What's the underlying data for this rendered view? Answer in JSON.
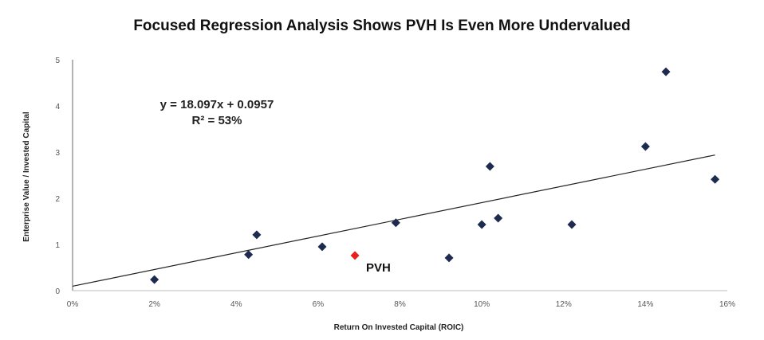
{
  "chart_data": {
    "type": "scatter",
    "title": "Focused Regression Analysis Shows PVH Is Even More Undervalued",
    "xlabel": "Return On Invested Capital (ROIC)",
    "ylabel": "Enterprise Value / Invested Capital",
    "xlim": [
      0,
      0.16
    ],
    "ylim": [
      0,
      5
    ],
    "x_ticks": [
      "0%",
      "2%",
      "4%",
      "6%",
      "8%",
      "10%",
      "12%",
      "14%",
      "16%"
    ],
    "y_ticks": [
      "0",
      "1",
      "2",
      "3",
      "4",
      "5"
    ],
    "grid": false,
    "points": [
      {
        "x": 0.02,
        "y": 0.24
      },
      {
        "x": 0.043,
        "y": 0.78
      },
      {
        "x": 0.045,
        "y": 1.21
      },
      {
        "x": 0.061,
        "y": 0.95
      },
      {
        "x": 0.079,
        "y": 1.47
      },
      {
        "x": 0.092,
        "y": 0.71
      },
      {
        "x": 0.1,
        "y": 1.43
      },
      {
        "x": 0.102,
        "y": 2.69
      },
      {
        "x": 0.104,
        "y": 1.57
      },
      {
        "x": 0.122,
        "y": 1.43
      },
      {
        "x": 0.14,
        "y": 3.12
      },
      {
        "x": 0.145,
        "y": 4.74
      },
      {
        "x": 0.157,
        "y": 2.41
      }
    ],
    "highlight": {
      "label": "PVH",
      "x": 0.069,
      "y": 0.76,
      "color": "#e8201a"
    },
    "point_color": "#1d2b4f",
    "trendline": {
      "slope": 18.097,
      "intercept": 0.0957,
      "x_range": [
        0,
        0.157
      ]
    },
    "equation_text": "y = 18.097x + 0.0957",
    "r2_text": "R² = 53%"
  }
}
